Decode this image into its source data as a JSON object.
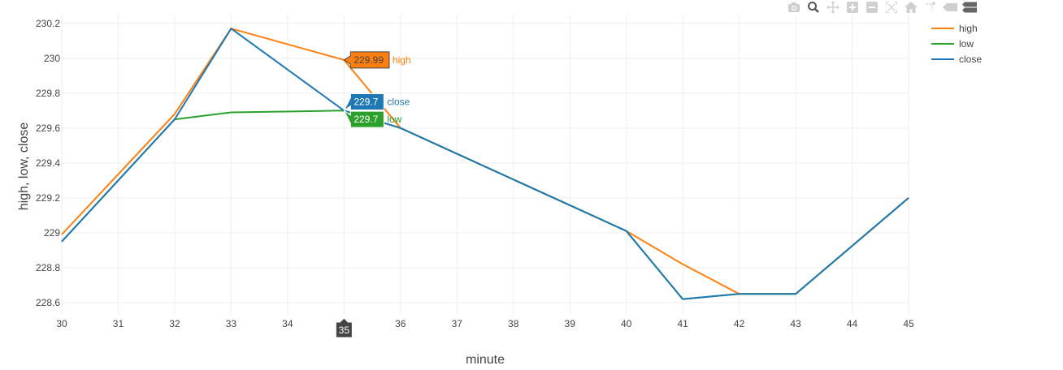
{
  "chart_data": {
    "type": "line",
    "xlabel": "minute",
    "ylabel": "high, low, close",
    "xlim": [
      30,
      45
    ],
    "ylim": [
      228.53,
      230.25
    ],
    "xticks": [
      30,
      31,
      32,
      33,
      34,
      35,
      36,
      37,
      38,
      39,
      40,
      41,
      42,
      43,
      44,
      45
    ],
    "xtick_labels": [
      "30",
      "31",
      "32",
      "33",
      "34",
      "",
      "36",
      "37",
      "38",
      "39",
      "40",
      "41",
      "42",
      "43",
      "44",
      "45"
    ],
    "yticks": [
      228.6,
      228.8,
      229,
      229.2,
      229.4,
      229.6,
      229.8,
      230,
      230.2
    ],
    "ytick_labels": [
      "228.6",
      "228.8",
      "229",
      "229.2",
      "229.4",
      "229.6",
      "229.8",
      "230",
      "230.2"
    ],
    "grid": true,
    "legend_position": "top-right",
    "series": [
      {
        "name": "high",
        "color": "#ff7f0e",
        "x": [
          30,
          32,
          33,
          35,
          36,
          40,
          41,
          42,
          43,
          45
        ],
        "y": [
          228.99,
          229.68,
          230.17,
          229.99,
          229.6,
          229.01,
          228.82,
          228.65,
          228.65,
          229.2
        ]
      },
      {
        "name": "low",
        "color": "#2ca02c",
        "x": [
          30,
          32,
          33,
          35,
          36,
          40,
          41,
          42,
          43,
          45
        ],
        "y": [
          228.95,
          229.65,
          229.69,
          229.7,
          229.6,
          229.01,
          228.62,
          228.65,
          228.65,
          229.2
        ]
      },
      {
        "name": "close",
        "color": "#1f77b4",
        "x": [
          30,
          32,
          33,
          35,
          36,
          40,
          41,
          42,
          43,
          45
        ],
        "y": [
          228.95,
          229.65,
          230.17,
          229.7,
          229.6,
          229.01,
          228.62,
          228.65,
          228.65,
          229.2
        ]
      }
    ],
    "hover": {
      "x_label": "35",
      "x": 35,
      "items": [
        {
          "series": "high",
          "value": "229.99",
          "y": 229.99,
          "label_y": 229.99
        },
        {
          "series": "close",
          "value": "229.7",
          "y": 229.7,
          "label_y": 229.75
        },
        {
          "series": "low",
          "value": "229.7",
          "y": 229.7,
          "label_y": 229.65
        }
      ]
    }
  },
  "modebar": {
    "buttons": [
      "camera-icon",
      "zoom-icon",
      "pan-icon",
      "zoom-in-icon",
      "zoom-out-icon",
      "autoscale-icon",
      "home-icon",
      "spike-lines-icon",
      "hover-closest-icon",
      "hover-compare-icon"
    ]
  }
}
